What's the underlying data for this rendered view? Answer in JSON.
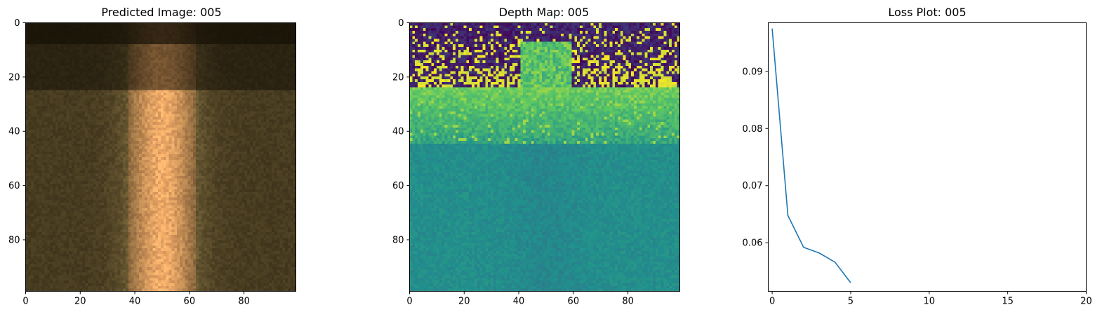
{
  "chart_data": [
    {
      "type": "heatmap",
      "title": "Predicted Image: 005",
      "colormap": "rgb",
      "xlim": [
        0,
        99
      ],
      "ylim": [
        99,
        0
      ],
      "xticks": [
        "0",
        "20",
        "40",
        "60",
        "80"
      ],
      "yticks": [
        "0",
        "20",
        "40",
        "60",
        "80"
      ],
      "grid": false
    },
    {
      "type": "heatmap",
      "title": "Depth Map: 005",
      "colormap": "viridis",
      "xlim": [
        0,
        99
      ],
      "ylim": [
        99,
        0
      ],
      "xticks": [
        "0",
        "20",
        "40",
        "60",
        "80"
      ],
      "yticks": [
        "0",
        "20",
        "40",
        "60",
        "80"
      ],
      "grid": false
    },
    {
      "type": "line",
      "title": "Loss Plot: 005",
      "x": [
        0,
        1,
        2,
        3,
        4,
        5
      ],
      "y": [
        0.0975,
        0.0648,
        0.0592,
        0.0582,
        0.0566,
        0.053
      ],
      "xlim": [
        -0.25,
        20
      ],
      "ylim": [
        0.0515,
        0.0985
      ],
      "xticks": [
        "0",
        "5",
        "10",
        "15",
        "20"
      ],
      "yticks": [
        "0.06",
        "0.07",
        "0.08",
        "0.09"
      ],
      "line_color": "#1f77b4",
      "grid": false
    }
  ]
}
